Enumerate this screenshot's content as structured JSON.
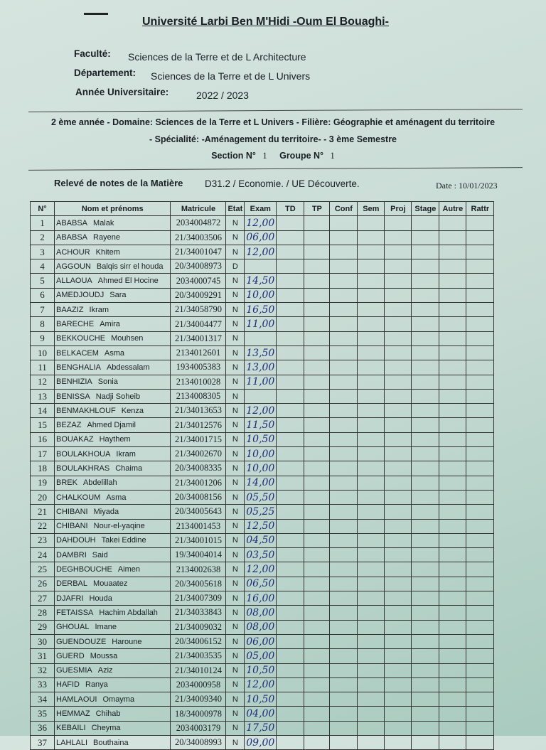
{
  "header": {
    "university": "Université Larbi Ben M'Hidi -Oum El Bouaghi-",
    "faculty_label": "Faculté:",
    "faculty": "Sciences de la Terre et de L Architecture",
    "department_label": "Département:",
    "department": "Sciences de  la Terre et de L Univers",
    "year_label": "Année Universitaire:",
    "year": "2022 /  2023",
    "line1": "2 ème année - Domaine: Sciences de la Terre et L Univers - Filière: Géographie et aménagent du territoire",
    "line2": "- Spécialité: -Aménagement du territoire- - 3 ème Semestre",
    "section_label": "Section N°",
    "section": "1",
    "group_label": "Groupe N°",
    "group": "1",
    "releve_label": "Relevé de notes de la Matière",
    "matiere": "D31.2  /  Economie.  /  UE Découverte.",
    "date": "Date :  10/01/2023"
  },
  "table": {
    "columns": [
      "N°",
      "Nom et prénoms",
      "Matricule",
      "Etat",
      "Exam",
      "TD",
      "TP",
      "Conf",
      "Sem",
      "Proj",
      "Stage",
      "Autre",
      "Rattr"
    ],
    "rows": [
      [
        "1",
        "ABABSA",
        "Malak",
        "2034004872",
        "N",
        "12,00"
      ],
      [
        "2",
        "ABABSA",
        "Rayene",
        "21/34003506",
        "N",
        "06,00"
      ],
      [
        "3",
        "ACHOUR",
        "Khitem",
        "21/34001047",
        "N",
        "12,00"
      ],
      [
        "4",
        "AGGOUN",
        "Balqis sirr el houda",
        "20/34008973",
        "D",
        ""
      ],
      [
        "5",
        "ALLAOUA",
        "Ahmed El Hocine",
        "2034000745",
        "N",
        "14,50"
      ],
      [
        "6",
        "AMEDJOUDJ",
        "Sara",
        "20/34009291",
        "N",
        "10,00"
      ],
      [
        "7",
        "BAAZIZ",
        "Ikram",
        "21/34058790",
        "N",
        "16,50"
      ],
      [
        "8",
        "BARECHE",
        "Amira",
        "21/34004477",
        "N",
        "11,00"
      ],
      [
        "9",
        "BEKKOUCHE",
        "Mouhsen",
        "21/34001317",
        "N",
        ""
      ],
      [
        "10",
        "BELKACEM",
        "Asma",
        "2134012601",
        "N",
        "13,50"
      ],
      [
        "11",
        "BENGHALIA",
        "Abdessalam",
        "1934005383",
        "N",
        "13,00"
      ],
      [
        "12",
        "BENHIZIA",
        "Sonia",
        "2134010028",
        "N",
        "11,00"
      ],
      [
        "13",
        "BENISSA",
        "Nadji Soheib",
        "2134008305",
        "N",
        ""
      ],
      [
        "14",
        "BENMAKHLOUF",
        "Kenza",
        "21/34013653",
        "N",
        "12,00"
      ],
      [
        "15",
        "BEZAZ",
        "Ahmed Djamil",
        "21/34012576",
        "N",
        "11,50"
      ],
      [
        "16",
        "BOUAKAZ",
        "Haythem",
        "21/34001715",
        "N",
        "10,50"
      ],
      [
        "17",
        "BOULAKHOUA",
        "Ikram",
        "21/34002670",
        "N",
        "10,00"
      ],
      [
        "18",
        "BOULAKHRAS",
        "Chaima",
        "20/34008335",
        "N",
        "10,00"
      ],
      [
        "19",
        "BREK",
        "Abdelillah",
        "21/34001206",
        "N",
        "14,00"
      ],
      [
        "20",
        "CHALKOUM",
        "Asma",
        "20/34008156",
        "N",
        "05,50"
      ],
      [
        "21",
        "CHIBANI",
        "Miyada",
        "20/34005643",
        "N",
        "05,25"
      ],
      [
        "22",
        "CHIBANI",
        "Nour-el-yaqine",
        "2134001453",
        "N",
        "12,50"
      ],
      [
        "23",
        "DAHDOUH",
        "Takei Eddine",
        "21/34001015",
        "N",
        "04,50"
      ],
      [
        "24",
        "DAMBRI",
        "Said",
        "19/34004014",
        "N",
        "03,50"
      ],
      [
        "25",
        "DEGHBOUCHE",
        "Aimen",
        "2134002638",
        "N",
        "12,00"
      ],
      [
        "26",
        "DERBAL",
        "Mouaatez",
        "20/34005618",
        "N",
        "06,50"
      ],
      [
        "27",
        "DJAFRI",
        "Houda",
        "21/34007309",
        "N",
        "16,00"
      ],
      [
        "28",
        "FETAISSA",
        "Hachim Abdallah",
        "21/34033843",
        "N",
        "08,00"
      ],
      [
        "29",
        "GHOUAL",
        "Imane",
        "21/34009032",
        "N",
        "08,00"
      ],
      [
        "30",
        "GUENDOUZE",
        "Haroune",
        "20/34006152",
        "N",
        "06,00"
      ],
      [
        "31",
        "GUERD",
        "Moussa",
        "21/34003535",
        "N",
        "05,00"
      ],
      [
        "32",
        "GUESMIA",
        "Aziz",
        "21/34010124",
        "N",
        "10,50"
      ],
      [
        "33",
        "HAFID",
        "Ranya",
        "2034000958",
        "N",
        "12,00"
      ],
      [
        "34",
        "HAMLAOUI",
        "Omayma",
        "21/34009340",
        "N",
        "10,50"
      ],
      [
        "35",
        "HEMMAZ",
        "Chihab",
        "18/34000978",
        "N",
        "04,00"
      ],
      [
        "36",
        "KEBAILI",
        "Cheyma",
        "2034003179",
        "N",
        "17,50"
      ],
      [
        "37",
        "LAHLALI",
        "Bouthaina",
        "20/34008993",
        "N",
        "09,00"
      ]
    ]
  }
}
